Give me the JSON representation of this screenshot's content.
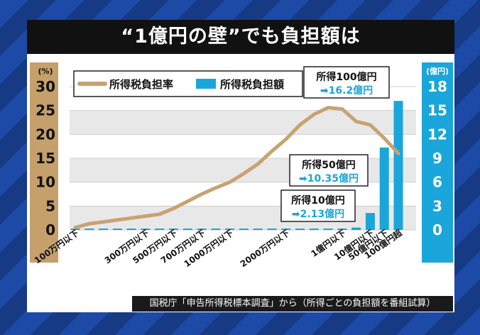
{
  "title": "“1億円の壁”でも負担額は",
  "source": "国税庁「申告所得税標本調査」から（所得ごとの負担額を番組試算）",
  "colors": {
    "rate_line": "#c8a272",
    "amount_bar": "#1aa6da",
    "callout_text": "#1aa6da"
  },
  "chart_data": {
    "type": "bar",
    "left_unit": "(%)",
    "right_unit": "(億円)",
    "left_ticks": [
      "30",
      "25",
      "20",
      "15",
      "10",
      "5",
      "0"
    ],
    "right_ticks": [
      "18",
      "15",
      "12",
      "9",
      "6",
      "3",
      "0"
    ],
    "ylim_left": [
      0,
      30
    ],
    "ylim_right": [
      0,
      18
    ],
    "x_labels": [
      "100万円以下",
      "300万円以下",
      "500万円以下",
      "700万円以下",
      "1000万円以下",
      "2000万円以下",
      "1億円以下",
      "10億円以下",
      "50億円以下",
      "100億円超"
    ],
    "x_label_index": [
      0,
      5,
      7,
      9,
      11,
      15,
      19,
      21,
      22,
      23
    ],
    "series": [
      {
        "name": "所得税負担率",
        "type": "line",
        "values": [
          0.5,
          1.3,
          1.7,
          2.1,
          2.5,
          2.9,
          3.3,
          4.5,
          6.0,
          7.5,
          8.8,
          10.0,
          11.8,
          13.8,
          16.5,
          19.0,
          22.0,
          24.2,
          25.6,
          25.3,
          22.7,
          22.0,
          19.2,
          16.0
        ]
      },
      {
        "name": "所得税負担額",
        "type": "bar",
        "values": [
          0,
          0,
          0,
          0,
          0,
          0,
          0,
          0,
          0,
          0,
          0,
          0,
          0,
          0,
          0,
          0,
          0.02,
          0.04,
          0.06,
          0.08,
          0.3,
          2.13,
          10.35,
          16.2
        ]
      }
    ],
    "legend": {
      "position": "top-left",
      "labels": [
        "所得税負担率",
        "所得税負担額"
      ]
    },
    "callouts": [
      {
        "top": "所得100億円",
        "bottom": "➡16.2億円",
        "index": 23
      },
      {
        "top": "所得50億円",
        "bottom": "➡10.35億円",
        "index": 22
      },
      {
        "top": "所得10億円",
        "bottom": "➡2.13億円",
        "index": 21
      }
    ]
  }
}
